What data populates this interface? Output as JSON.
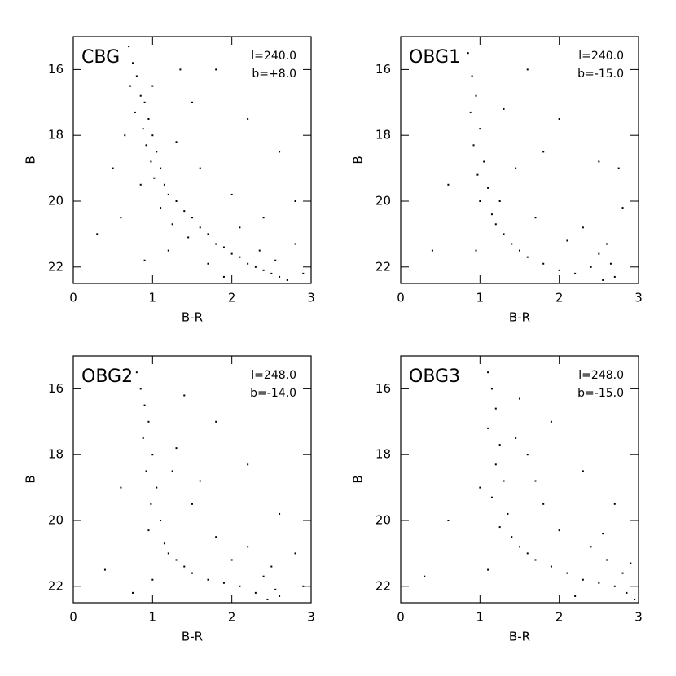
{
  "chart_data": [
    {
      "type": "scatter",
      "title": "CBG",
      "annotations": [
        "l=240.0",
        "b=+8.0"
      ],
      "x_label": "B-R",
      "y_label": "B",
      "color": "#000000",
      "xlim": [
        0,
        3
      ],
      "ylim": [
        22.5,
        15
      ],
      "xticks": [
        0,
        1,
        2,
        3
      ],
      "yticks": [
        16,
        18,
        20,
        22
      ],
      "x": [
        0.7,
        0.75,
        0.8,
        0.72,
        0.85,
        0.9,
        0.78,
        0.95,
        0.88,
        1.0,
        0.92,
        1.05,
        0.98,
        1.1,
        1.02,
        1.15,
        1.2,
        1.3,
        1.1,
        1.4,
        1.5,
        1.25,
        1.6,
        1.7,
        1.45,
        1.8,
        1.9,
        2.0,
        2.1,
        2.2,
        2.3,
        2.4,
        2.5,
        2.6,
        2.7,
        2.35,
        2.55,
        1.7,
        1.2,
        0.9,
        0.6,
        0.5,
        0.3,
        1.5,
        1.8,
        2.2,
        2.6,
        2.8,
        1.3,
        1.6,
        2.0,
        2.4,
        2.8,
        1.0,
        0.65,
        1.9,
        2.9,
        0.85,
        1.35,
        2.1
      ],
      "y": [
        15.3,
        15.8,
        16.2,
        16.5,
        16.8,
        17.0,
        17.3,
        17.5,
        17.8,
        18.0,
        18.3,
        18.5,
        18.8,
        19.0,
        19.3,
        19.5,
        19.8,
        20.0,
        20.2,
        20.3,
        20.5,
        20.7,
        20.8,
        21.0,
        21.1,
        21.3,
        21.4,
        21.6,
        21.7,
        21.9,
        22.0,
        22.1,
        22.2,
        22.3,
        22.4,
        21.5,
        21.8,
        21.9,
        21.5,
        21.8,
        20.5,
        19.0,
        21.0,
        17.0,
        16.0,
        17.5,
        18.5,
        20.0,
        18.2,
        19.0,
        19.8,
        20.5,
        21.3,
        16.5,
        18.0,
        22.3,
        22.2,
        19.5,
        16.0,
        20.8
      ]
    },
    {
      "type": "scatter",
      "title": "OBG1",
      "annotations": [
        "l=240.0",
        "b=-15.0"
      ],
      "x_label": "B-R",
      "y_label": "B",
      "color": "#000000",
      "xlim": [
        0,
        3
      ],
      "ylim": [
        22.5,
        15
      ],
      "xticks": [
        0,
        1,
        2,
        3
      ],
      "yticks": [
        16,
        18,
        20,
        22
      ],
      "x": [
        0.85,
        0.9,
        0.95,
        0.88,
        1.0,
        0.92,
        1.05,
        0.97,
        1.1,
        1.0,
        1.15,
        1.2,
        1.3,
        1.4,
        1.5,
        1.6,
        1.8,
        2.0,
        2.2,
        2.4,
        2.5,
        2.6,
        2.65,
        2.7,
        2.55,
        1.25,
        1.45,
        1.7,
        2.1,
        2.3,
        0.6,
        0.4,
        1.6,
        2.0,
        2.5,
        2.8,
        1.3,
        1.8,
        0.95,
        2.75
      ],
      "y": [
        15.5,
        16.2,
        16.8,
        17.3,
        17.8,
        18.3,
        18.8,
        19.2,
        19.6,
        20.0,
        20.4,
        20.7,
        21.0,
        21.3,
        21.5,
        21.7,
        21.9,
        22.1,
        22.2,
        22.0,
        21.6,
        21.3,
        21.9,
        22.3,
        22.4,
        20.0,
        19.0,
        20.5,
        21.2,
        20.8,
        19.5,
        21.5,
        16.0,
        17.5,
        18.8,
        20.2,
        17.2,
        18.5,
        21.5,
        19.0
      ]
    },
    {
      "type": "scatter",
      "title": "OBG2",
      "annotations": [
        "l=248.0",
        "b=-14.0"
      ],
      "x_label": "B-R",
      "y_label": "B",
      "color": "#000000",
      "xlim": [
        0,
        3
      ],
      "ylim": [
        22.5,
        15
      ],
      "xticks": [
        0,
        1,
        2,
        3
      ],
      "yticks": [
        16,
        18,
        20,
        22
      ],
      "x": [
        0.8,
        0.85,
        0.9,
        0.95,
        0.88,
        1.0,
        0.92,
        1.05,
        0.98,
        1.1,
        0.95,
        1.15,
        1.2,
        1.3,
        1.4,
        1.5,
        1.7,
        1.9,
        2.1,
        2.3,
        2.4,
        2.5,
        2.55,
        2.6,
        2.45,
        1.25,
        1.5,
        1.8,
        2.0,
        2.2,
        0.6,
        0.4,
        1.4,
        1.8,
        2.2,
        2.6,
        1.3,
        1.6,
        1.0,
        2.8,
        0.75,
        2.9
      ],
      "y": [
        15.5,
        16.0,
        16.5,
        17.0,
        17.5,
        18.0,
        18.5,
        19.0,
        19.5,
        20.0,
        20.3,
        20.7,
        21.0,
        21.2,
        21.4,
        21.6,
        21.8,
        21.9,
        22.0,
        22.2,
        21.7,
        21.4,
        22.1,
        22.3,
        22.4,
        18.5,
        19.5,
        20.5,
        21.2,
        20.8,
        19.0,
        21.5,
        16.2,
        17.0,
        18.3,
        19.8,
        17.8,
        18.8,
        21.8,
        21.0,
        22.2,
        22.0
      ]
    },
    {
      "type": "scatter",
      "title": "OBG3",
      "annotations": [
        "l=248.0",
        "b=-15.0"
      ],
      "x_label": "B-R",
      "y_label": "B",
      "color": "#000000",
      "xlim": [
        0,
        3
      ],
      "ylim": [
        22.5,
        15
      ],
      "xticks": [
        0,
        1,
        2,
        3
      ],
      "yticks": [
        16,
        18,
        20,
        22
      ],
      "x": [
        1.1,
        1.15,
        1.2,
        1.1,
        1.25,
        1.2,
        1.3,
        1.15,
        1.35,
        1.25,
        1.4,
        1.5,
        1.6,
        1.7,
        1.9,
        2.1,
        2.3,
        2.5,
        2.7,
        2.8,
        2.9,
        2.85,
        2.95,
        1.6,
        1.8,
        2.0,
        2.4,
        2.6,
        0.6,
        0.3,
        1.5,
        1.9,
        2.3,
        2.7,
        1.45,
        1.7,
        1.1,
        2.2,
        1.0,
        2.55
      ],
      "y": [
        15.5,
        16.0,
        16.6,
        17.2,
        17.7,
        18.3,
        18.8,
        19.3,
        19.8,
        20.2,
        20.5,
        20.8,
        21.0,
        21.2,
        21.4,
        21.6,
        21.8,
        21.9,
        22.0,
        21.6,
        21.3,
        22.2,
        22.4,
        18.0,
        19.5,
        20.3,
        20.8,
        21.2,
        20.0,
        21.7,
        16.3,
        17.0,
        18.5,
        19.5,
        17.5,
        18.8,
        21.5,
        22.3,
        19.0,
        20.4
      ]
    }
  ]
}
